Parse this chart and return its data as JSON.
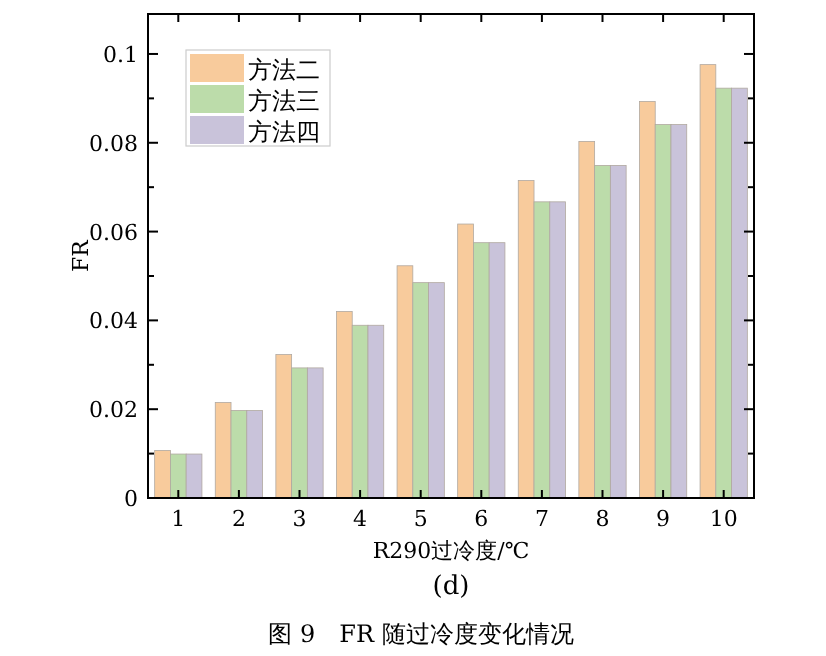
{
  "chart_data": {
    "type": "bar",
    "xlabel": "R290过冷度/℃",
    "ylabel": "FR",
    "categories": [
      "1",
      "2",
      "3",
      "4",
      "5",
      "6",
      "7",
      "8",
      "9",
      "10"
    ],
    "series": [
      {
        "name": "方法二",
        "color": "#f8cb9c",
        "values": [
          0.0107,
          0.0215,
          0.0323,
          0.042,
          0.0523,
          0.0617,
          0.0715,
          0.0803,
          0.0893,
          0.0976
        ]
      },
      {
        "name": "方法三",
        "color": "#bcdcaa",
        "values": [
          0.0099,
          0.0197,
          0.0293,
          0.0389,
          0.0485,
          0.0575,
          0.0667,
          0.0749,
          0.0841,
          0.0923
        ]
      },
      {
        "name": "方法四",
        "color": "#c9c3da",
        "values": [
          0.0099,
          0.0197,
          0.0293,
          0.0389,
          0.0485,
          0.0575,
          0.0667,
          0.0749,
          0.0841,
          0.0923
        ]
      }
    ],
    "ylim": [
      0,
      0.109
    ],
    "yticks": [
      0,
      0.02,
      0.04,
      0.06,
      0.08,
      0.1
    ],
    "legend": "top left",
    "annotations": [
      "(d)",
      "图 9　FR 随过冷度变化情况"
    ]
  }
}
